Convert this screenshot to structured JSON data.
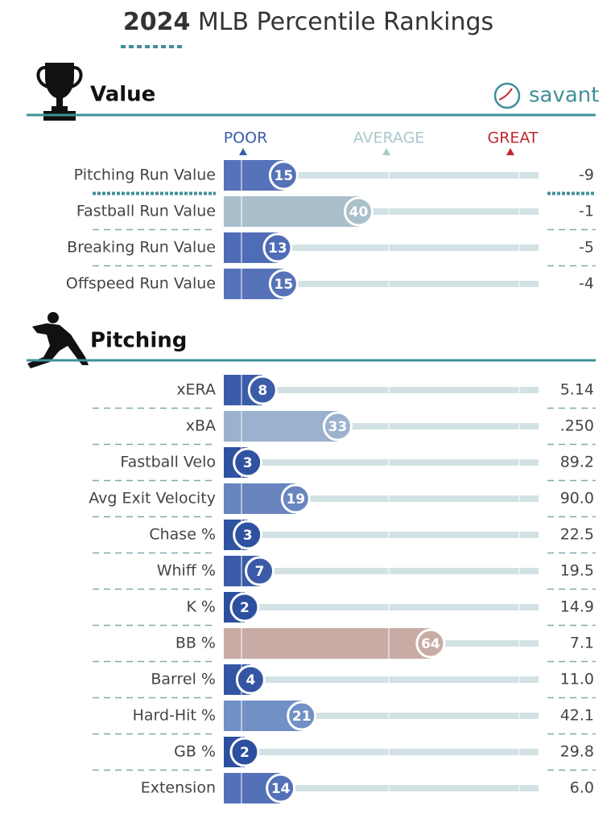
{
  "chart_data": {
    "type": "percentile",
    "title_year": "2024",
    "title": "MLB Percentile Rankings",
    "brand": "savant",
    "scale_labels": [
      "POOR",
      "AVERAGE",
      "GREAT"
    ],
    "xlim": [
      0,
      100
    ],
    "sections": [
      {
        "name": "Value",
        "categories": [
          "Pitching Run Value",
          "Fastball Run Value",
          "Breaking Run Value",
          "Offspeed Run Value"
        ],
        "values": [
          15,
          40,
          13,
          15
        ],
        "colors": [
          "#5672b9",
          "#a9c0cb",
          "#4f6cb6",
          "#5672b9"
        ],
        "stats": [
          "-9",
          "-1",
          "-5",
          "-4"
        ]
      },
      {
        "name": "Pitching",
        "categories": [
          "xERA",
          "xBA",
          "Fastball Velo",
          "Avg Exit Velocity",
          "Chase %",
          "Whiff %",
          "K %",
          "BB %",
          "Barrel %",
          "Hard-Hit %",
          "GB %",
          "Extension"
        ],
        "values": [
          8,
          33,
          3,
          19,
          3,
          7,
          2,
          64,
          4,
          21,
          2,
          14
        ],
        "colors": [
          "#3c5ca9",
          "#9bb1cd",
          "#2f52a1",
          "#6985c0",
          "#2f52a1",
          "#3b5ba8",
          "#2c4f9f",
          "#c9aba5",
          "#3355a3",
          "#7190c5",
          "#2c4f9f",
          "#5470b8"
        ],
        "stats": [
          "5.14",
          ".250",
          "89.2",
          "90.0",
          "22.5",
          "19.5",
          "14.9",
          "7.1",
          "11.0",
          "42.1",
          "29.8",
          "6.0"
        ]
      }
    ]
  }
}
